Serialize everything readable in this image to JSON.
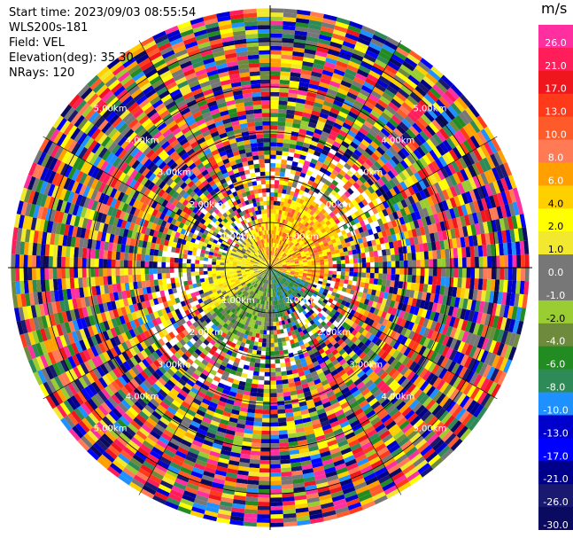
{
  "info": {
    "start_time": "Start time: 2023/09/03 08:55:54",
    "instrument": "WLS200s-181",
    "field": "Field: VEL",
    "elevation": "Elevation(deg): 35.30",
    "nrays": "NRays: 120"
  },
  "colorbar": {
    "unit": "m/s",
    "bins": [
      {
        "label": "26.0",
        "color": "#ff2fa0"
      },
      {
        "label": "21.0",
        "color": "#ff1e5a"
      },
      {
        "label": "17.0",
        "color": "#f0161e"
      },
      {
        "label": "13.0",
        "color": "#ff3a1a"
      },
      {
        "label": "10.0",
        "color": "#ff5a2a"
      },
      {
        "label": "8.0",
        "color": "#ff7a55"
      },
      {
        "label": "6.0",
        "color": "#ffa000"
      },
      {
        "label": "4.0",
        "color": "#ffcf00"
      },
      {
        "label": "2.0",
        "color": "#ffff00"
      },
      {
        "label": "1.0",
        "color": "#f2e830"
      },
      {
        "label": "0.0",
        "color": "#777777"
      },
      {
        "label": "-1.0",
        "color": "#777777"
      },
      {
        "label": "-2.0",
        "color": "#9acd32"
      },
      {
        "label": "-4.0",
        "color": "#6e8b3d"
      },
      {
        "label": "-6.0",
        "color": "#228b22"
      },
      {
        "label": "-8.0",
        "color": "#2e8b57"
      },
      {
        "label": "-10.0",
        "color": "#1e90ff"
      },
      {
        "label": "-13.0",
        "color": "#0000cd"
      },
      {
        "label": "-17.0",
        "color": "#0000ff"
      },
      {
        "label": "-21.0",
        "color": "#00008b"
      },
      {
        "label": "-26.0",
        "color": "#191970"
      },
      {
        "label": "-30.0",
        "color": "#0a0a60"
      }
    ]
  },
  "chart_data": {
    "type": "heatmap",
    "projection": "polar (PPI scan)",
    "field": "VEL",
    "n_rays": 120,
    "range_rings_km": [
      1.0,
      2.0,
      3.0,
      4.0,
      5.0
    ],
    "range_ring_labels": [
      "1.00km",
      "2.00km",
      "3.00km",
      "4.00km",
      "5.00km"
    ],
    "max_range_km": 5.8,
    "gate_spacing_km": 0.0925,
    "near_field_pattern": {
      "north_to_east_sector": "positive (orange/yellow/red)",
      "west_sector": "weakly positive (yellow)",
      "south_sector": "negative (green/blue)",
      "southwest_sector": "near zero (grey/green)"
    },
    "far_field": "noisy (random colors across full colorbar)"
  }
}
